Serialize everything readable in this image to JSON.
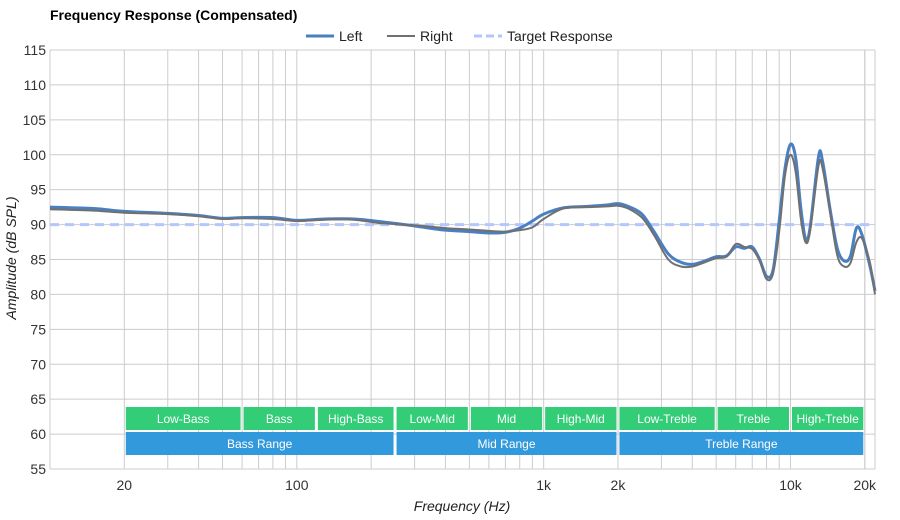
{
  "chart_data": {
    "type": "line",
    "title": "Frequency Response (Compensated)",
    "xlabel": "Frequency (Hz)",
    "ylabel": "Amplitude (dB SPL)",
    "xscale": "log",
    "xlim": [
      10,
      22000
    ],
    "ylim": [
      55,
      115
    ],
    "yticks": [
      55,
      60,
      65,
      70,
      75,
      80,
      85,
      90,
      95,
      100,
      105,
      110,
      115
    ],
    "xticks": [
      {
        "value": 20,
        "label": "20"
      },
      {
        "value": 100,
        "label": "100"
      },
      {
        "value": 1000,
        "label": "1k"
      },
      {
        "value": 2000,
        "label": "2k"
      },
      {
        "value": 10000,
        "label": "10k"
      },
      {
        "value": 20000,
        "label": "20k"
      }
    ],
    "grid": true,
    "legend_position": "top-center",
    "colors": {
      "left": "#4a7fc1",
      "right": "#707070",
      "target": "#b3c6ff",
      "band_green": "#33cc77",
      "band_blue": "#3399dd",
      "grid": "#cccccc"
    },
    "series": [
      {
        "name": "Left",
        "style": "solid",
        "points": [
          [
            10,
            92.5
          ],
          [
            15,
            92.3
          ],
          [
            20,
            91.9
          ],
          [
            30,
            91.6
          ],
          [
            40,
            91.3
          ],
          [
            50,
            90.9
          ],
          [
            60,
            91.0
          ],
          [
            80,
            91.0
          ],
          [
            100,
            90.6
          ],
          [
            130,
            90.8
          ],
          [
            170,
            90.8
          ],
          [
            220,
            90.4
          ],
          [
            300,
            89.8
          ],
          [
            400,
            89.2
          ],
          [
            500,
            89.0
          ],
          [
            600,
            88.8
          ],
          [
            700,
            88.9
          ],
          [
            800,
            89.5
          ],
          [
            900,
            90.5
          ],
          [
            1000,
            91.5
          ],
          [
            1200,
            92.4
          ],
          [
            1500,
            92.6
          ],
          [
            1800,
            92.8
          ],
          [
            2000,
            93.0
          ],
          [
            2200,
            92.6
          ],
          [
            2500,
            91.5
          ],
          [
            2800,
            89.0
          ],
          [
            3200,
            85.8
          ],
          [
            3600,
            84.6
          ],
          [
            4000,
            84.3
          ],
          [
            4500,
            84.8
          ],
          [
            5000,
            85.4
          ],
          [
            5500,
            85.5
          ],
          [
            6000,
            86.8
          ],
          [
            6500,
            86.6
          ],
          [
            7000,
            86.8
          ],
          [
            7500,
            85.0
          ],
          [
            8000,
            82.6
          ],
          [
            8500,
            83.5
          ],
          [
            9000,
            90.5
          ],
          [
            9500,
            98.0
          ],
          [
            10000,
            101.5
          ],
          [
            10500,
            99.5
          ],
          [
            11000,
            92.5
          ],
          [
            11500,
            88.0
          ],
          [
            12000,
            89.5
          ],
          [
            13000,
            99.8
          ],
          [
            13500,
            99.0
          ],
          [
            14500,
            92.0
          ],
          [
            15500,
            86.5
          ],
          [
            16500,
            84.8
          ],
          [
            17500,
            85.5
          ],
          [
            18500,
            89.5
          ],
          [
            19500,
            88.5
          ],
          [
            21000,
            84.0
          ],
          [
            22000,
            80.5
          ]
        ]
      },
      {
        "name": "Right",
        "style": "solid",
        "points": [
          [
            10,
            92.2
          ],
          [
            15,
            92.0
          ],
          [
            20,
            91.7
          ],
          [
            30,
            91.5
          ],
          [
            40,
            91.2
          ],
          [
            50,
            90.8
          ],
          [
            60,
            90.9
          ],
          [
            80,
            90.8
          ],
          [
            100,
            90.5
          ],
          [
            130,
            90.7
          ],
          [
            170,
            90.7
          ],
          [
            220,
            90.2
          ],
          [
            300,
            89.9
          ],
          [
            400,
            89.5
          ],
          [
            500,
            89.3
          ],
          [
            600,
            89.1
          ],
          [
            700,
            89.0
          ],
          [
            800,
            89.2
          ],
          [
            900,
            89.6
          ],
          [
            1000,
            90.8
          ],
          [
            1200,
            92.3
          ],
          [
            1500,
            92.5
          ],
          [
            1800,
            92.6
          ],
          [
            2000,
            92.7
          ],
          [
            2200,
            92.3
          ],
          [
            2500,
            91.0
          ],
          [
            2800,
            88.5
          ],
          [
            3200,
            85.0
          ],
          [
            3600,
            84.0
          ],
          [
            4000,
            84.0
          ],
          [
            4500,
            84.6
          ],
          [
            5000,
            85.2
          ],
          [
            5500,
            85.4
          ],
          [
            6000,
            87.2
          ],
          [
            6500,
            86.8
          ],
          [
            7000,
            86.5
          ],
          [
            7500,
            84.8
          ],
          [
            8000,
            82.2
          ],
          [
            8500,
            83.0
          ],
          [
            9000,
            89.0
          ],
          [
            9500,
            97.0
          ],
          [
            10000,
            100.0
          ],
          [
            10500,
            97.5
          ],
          [
            11000,
            91.0
          ],
          [
            11500,
            87.5
          ],
          [
            12000,
            89.0
          ],
          [
            13000,
            98.5
          ],
          [
            13500,
            98.0
          ],
          [
            14500,
            91.5
          ],
          [
            15500,
            85.5
          ],
          [
            16500,
            84.0
          ],
          [
            17500,
            84.5
          ],
          [
            18500,
            87.5
          ],
          [
            19500,
            88.0
          ],
          [
            21000,
            84.5
          ],
          [
            22000,
            80.0
          ]
        ]
      },
      {
        "name": "Target Response",
        "style": "dashed",
        "points": [
          [
            10,
            90
          ],
          [
            22000,
            90
          ]
        ]
      }
    ],
    "bands": {
      "upper": [
        {
          "label": "Low-Bass",
          "from": 20,
          "to": 60
        },
        {
          "label": "Bass",
          "from": 60,
          "to": 120
        },
        {
          "label": "High-Bass",
          "from": 120,
          "to": 250
        },
        {
          "label": "Low-Mid",
          "from": 250,
          "to": 500
        },
        {
          "label": "Mid",
          "from": 500,
          "to": 1000
        },
        {
          "label": "High-Mid",
          "from": 1000,
          "to": 2000
        },
        {
          "label": "Low-Treble",
          "from": 2000,
          "to": 5000
        },
        {
          "label": "Treble",
          "from": 5000,
          "to": 10000
        },
        {
          "label": "High-Treble",
          "from": 10000,
          "to": 20000
        }
      ],
      "lower": [
        {
          "label": "Bass Range",
          "from": 20,
          "to": 250
        },
        {
          "label": "Mid Range",
          "from": 250,
          "to": 2000
        },
        {
          "label": "Treble Range",
          "from": 2000,
          "to": 20000
        }
      ]
    }
  }
}
